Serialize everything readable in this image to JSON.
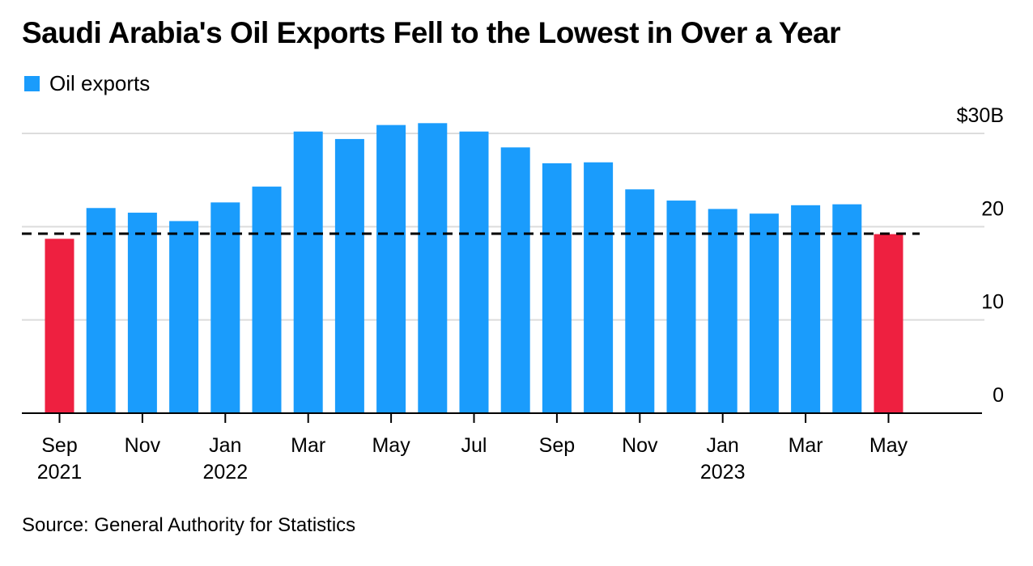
{
  "title": "Saudi Arabia's Oil Exports Fell to the Lowest in Over a Year",
  "legend": [
    {
      "label": "Oil exports",
      "color": "#1a9cfc"
    }
  ],
  "source": "Source: General Authority for Statistics",
  "colors": {
    "bar": "#1a9cfc",
    "highlight": "#ee2040",
    "grid": "#dcdcdc",
    "axis": "#000000",
    "reference": "#000000"
  },
  "chart_data": {
    "type": "bar",
    "title": "Saudi Arabia's Oil Exports Fell to the Lowest in Over a Year",
    "xlabel": "",
    "ylabel": "",
    "unit": "$B",
    "ylim": [
      0,
      30
    ],
    "y_ticks": [
      {
        "value": 0,
        "label": "0"
      },
      {
        "value": 10,
        "label": "10"
      },
      {
        "value": 20,
        "label": "20"
      },
      {
        "value": 30,
        "label": "$30B"
      }
    ],
    "grid": true,
    "y_axis_side": "right",
    "legend_position": "top-left",
    "categories": [
      "2021-09",
      "2021-10",
      "2021-11",
      "2021-12",
      "2022-01",
      "2022-02",
      "2022-03",
      "2022-04",
      "2022-05",
      "2022-06",
      "2022-07",
      "2022-08",
      "2022-09",
      "2022-10",
      "2022-11",
      "2022-12",
      "2023-01",
      "2023-02",
      "2023-03",
      "2023-04",
      "2023-05"
    ],
    "series": [
      {
        "name": "Oil exports",
        "values": [
          18.7,
          22.0,
          21.5,
          20.6,
          22.6,
          24.3,
          30.2,
          29.4,
          30.9,
          31.1,
          30.2,
          28.5,
          26.8,
          26.9,
          24.0,
          22.8,
          21.9,
          21.4,
          22.3,
          22.4,
          19.2
        ]
      }
    ],
    "highlighted_indices": [
      0,
      20
    ],
    "reference_line": {
      "value": 19.25,
      "style": "dashed",
      "from_index": 0,
      "to_index": 20
    },
    "x_tick_labels": [
      {
        "index": 0,
        "month": "Sep",
        "year": "2021"
      },
      {
        "index": 2,
        "month": "Nov",
        "year": ""
      },
      {
        "index": 4,
        "month": "Jan",
        "year": "2022"
      },
      {
        "index": 6,
        "month": "Mar",
        "year": ""
      },
      {
        "index": 8,
        "month": "May",
        "year": ""
      },
      {
        "index": 10,
        "month": "Jul",
        "year": ""
      },
      {
        "index": 12,
        "month": "Sep",
        "year": ""
      },
      {
        "index": 14,
        "month": "Nov",
        "year": ""
      },
      {
        "index": 16,
        "month": "Jan",
        "year": "2023"
      },
      {
        "index": 18,
        "month": "Mar",
        "year": ""
      },
      {
        "index": 20,
        "month": "May",
        "year": ""
      }
    ]
  }
}
